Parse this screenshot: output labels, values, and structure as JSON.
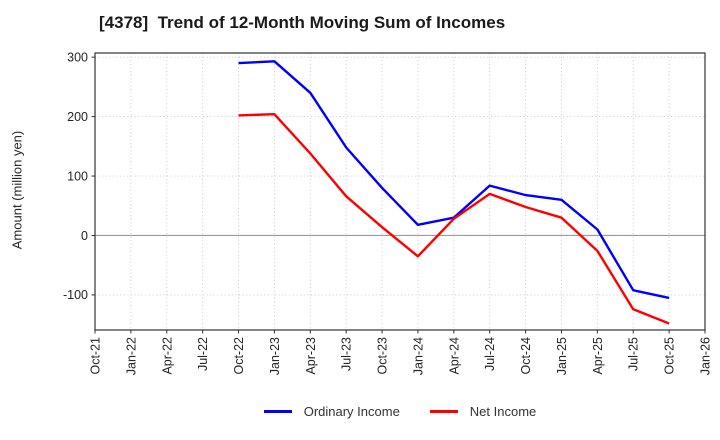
{
  "chart_data": {
    "type": "line",
    "title": "[4378]  Trend of 12-Month Moving Sum of Incomes",
    "ylabel": "Amount (million yen)",
    "categories": [
      "Oct-21",
      "Jan-22",
      "Apr-22",
      "Jul-22",
      "Oct-22",
      "Jan-23",
      "Apr-23",
      "Jul-23",
      "Oct-23",
      "Jan-24",
      "Apr-24",
      "Jul-24",
      "Oct-24",
      "Jan-25",
      "Apr-25",
      "Jul-25",
      "Oct-25",
      "Jan-26"
    ],
    "series": [
      {
        "name": "Ordinary Income",
        "color": "#0000ff",
        "values": [
          null,
          null,
          null,
          null,
          290,
          293,
          240,
          148,
          80,
          18,
          30,
          84,
          68,
          60,
          10,
          -92,
          -105,
          null
        ]
      },
      {
        "name": "Net Income",
        "color": "#ff0000",
        "values": [
          null,
          null,
          null,
          null,
          202,
          204,
          138,
          66,
          14,
          -35,
          28,
          70,
          48,
          30,
          -26,
          -124,
          -148,
          null
        ]
      }
    ],
    "ylim": [
      -159,
      307
    ],
    "yticks": [
      300,
      200,
      100,
      0,
      -100
    ],
    "grid": true,
    "legend_position": "bottom"
  }
}
